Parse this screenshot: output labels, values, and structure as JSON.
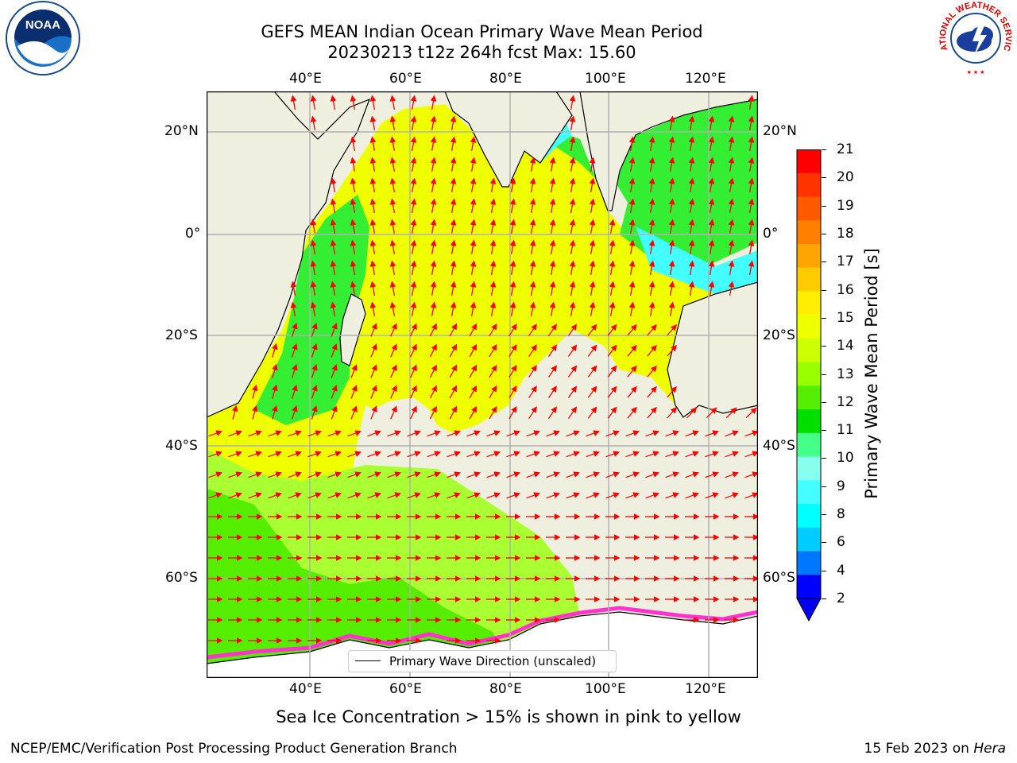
{
  "title": {
    "line1": "GEFS MEAN Indian Ocean Primary Wave Mean Period",
    "line2": "20230213 t12z 264h fcst   Max: 15.60"
  },
  "axes": {
    "lon_top": [
      "40°E",
      "60°E",
      "80°E",
      "100°E",
      "120°E"
    ],
    "lon_bottom": [
      "40°E",
      "60°E",
      "80°E",
      "100°E",
      "120°E"
    ],
    "lat_left": [
      "20°N",
      "0°",
      "20°S",
      "40°S",
      "60°S"
    ],
    "lat_right": [
      "20°N",
      "0°",
      "20°S",
      "40°S",
      "60°S"
    ]
  },
  "colorbar": {
    "label": "Primary Wave Mean Period [s]",
    "ticks": [
      "21",
      "20",
      "19",
      "18",
      "17",
      "16",
      "15",
      "14",
      "13",
      "12",
      "11",
      "10",
      "9",
      "8",
      "6",
      "4",
      "2"
    ],
    "colors": [
      "#ff0000",
      "#ff3300",
      "#ff5a00",
      "#ff7f00",
      "#ffa500",
      "#ffcc00",
      "#ffee00",
      "#eeff00",
      "#ccff00",
      "#99ff00",
      "#55ee00",
      "#00e000",
      "#44ff88",
      "#88ffee",
      "#44ffff",
      "#00ffff",
      "#00ccff",
      "#0077ff",
      "#0000ff"
    ],
    "extend_color": "#0000ee"
  },
  "legend": {
    "label": "Primary Wave Direction (unscaled)"
  },
  "caption": "Sea Ice Concentration > 15% is shown in pink to yellow",
  "footer": {
    "left": "NCEP/EMC/Verification Post Processing Product Generation Branch",
    "right_date": "15 Feb 2023 on ",
    "right_host": "Hera"
  },
  "logos": {
    "noaa": "NOAA",
    "nws": "NATIONAL WEATHER SERVICE"
  },
  "map_colors": {
    "land": "#efefdf",
    "ocean_main": "#f0ff00",
    "ocean_south": "#aaff33",
    "ocean_far_south": "#55ee00",
    "coastal_green": "#33ee33",
    "shallow": "#44ffff",
    "arrows": "#ff0000",
    "ice": "#ff33cc"
  }
}
